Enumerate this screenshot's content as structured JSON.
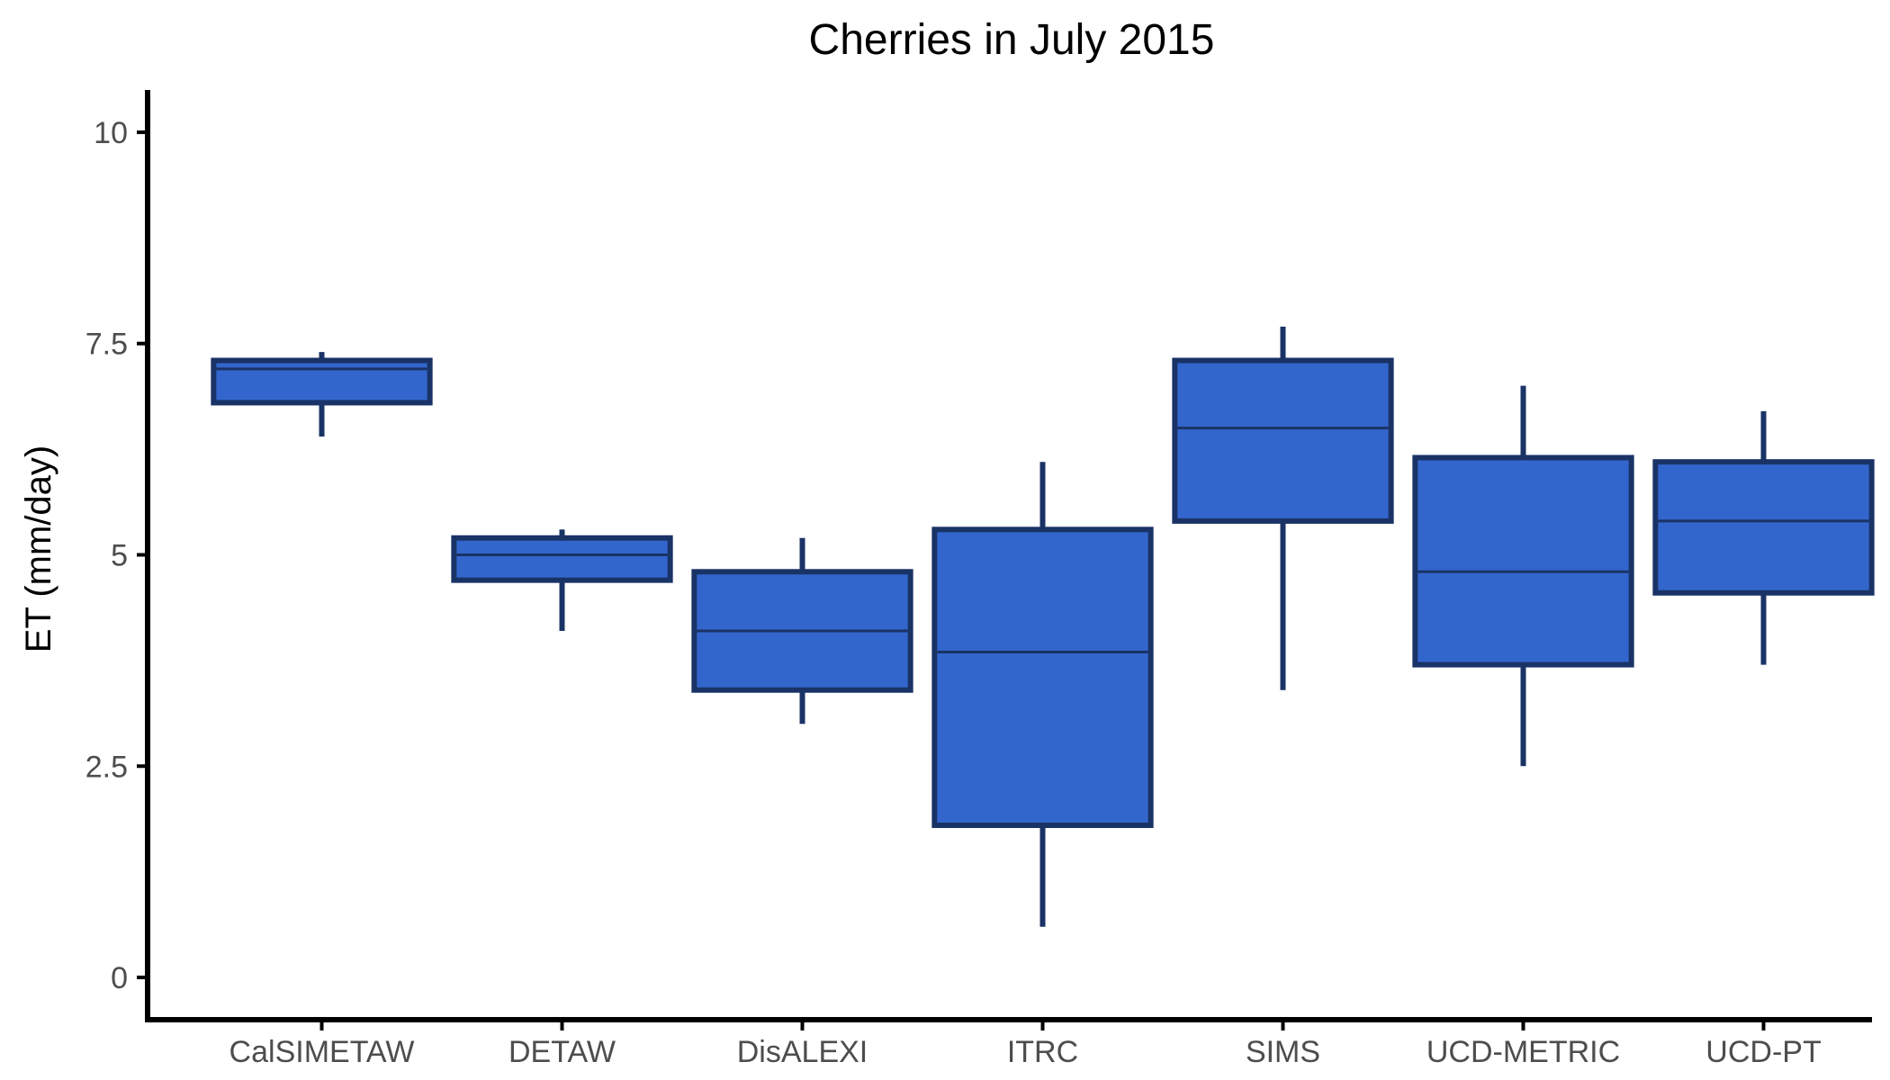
{
  "chart_data": {
    "type": "boxplot",
    "title": "Cherries in July 2015",
    "xlabel": "",
    "ylabel": "ET (mm/day)",
    "ylim": [
      -0.5,
      10.5
    ],
    "y_ticks": [
      0,
      2.5,
      5,
      7.5,
      10
    ],
    "y_tick_labels": [
      "0",
      "2.5",
      "5",
      "7.5",
      "10"
    ],
    "grid": false,
    "legend": "none",
    "colors": {
      "box_fill": "#3366cc",
      "box_stroke": "#1a3366"
    },
    "categories": [
      "CalSIMETAW",
      "DETAW",
      "DisALEXI",
      "ITRC",
      "SIMS",
      "UCD-METRIC",
      "UCD-PT"
    ],
    "boxes": [
      {
        "category": "CalSIMETAW",
        "whisker_low": 6.4,
        "q1": 6.8,
        "median": 7.2,
        "q3": 7.3,
        "whisker_high": 7.4
      },
      {
        "category": "DETAW",
        "whisker_low": 4.1,
        "q1": 4.7,
        "median": 5.0,
        "q3": 5.2,
        "whisker_high": 5.3
      },
      {
        "category": "DisALEXI",
        "whisker_low": 3.0,
        "q1": 3.4,
        "median": 4.1,
        "q3": 4.8,
        "whisker_high": 5.2
      },
      {
        "category": "ITRC",
        "whisker_low": 0.6,
        "q1": 1.8,
        "median": 3.85,
        "q3": 5.3,
        "whisker_high": 6.1
      },
      {
        "category": "SIMS",
        "whisker_low": 3.4,
        "q1": 5.4,
        "median": 6.5,
        "q3": 7.3,
        "whisker_high": 7.7
      },
      {
        "category": "UCD-METRIC",
        "whisker_low": 2.5,
        "q1": 3.7,
        "median": 4.8,
        "q3": 6.15,
        "whisker_high": 7.0
      },
      {
        "category": "UCD-PT",
        "whisker_low": 3.7,
        "q1": 4.55,
        "median": 5.4,
        "q3": 6.1,
        "whisker_high": 6.7
      }
    ]
  }
}
